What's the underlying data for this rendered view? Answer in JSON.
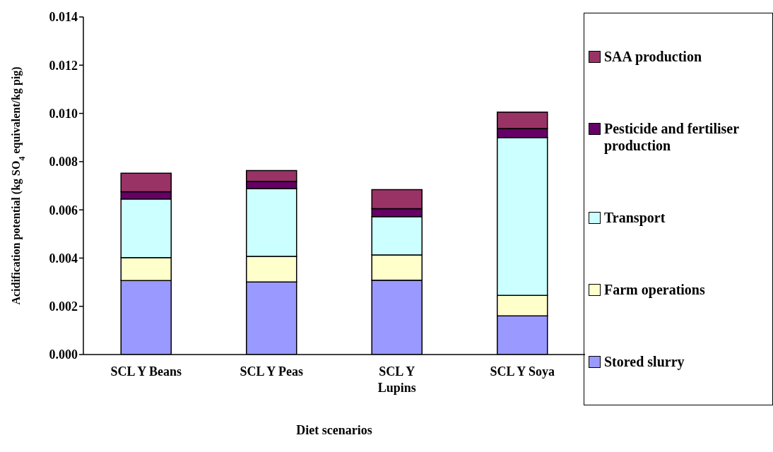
{
  "chart_data": {
    "type": "bar",
    "stacked": true,
    "xlabel": "Diet scenarios",
    "ylabel": "Acidification potential (kg SO$_{4}$ equivalent/kg pig)",
    "categories": [
      "SCL Y Beans",
      "SCL Y Peas",
      "SCL Y Lupins",
      "SCL Y Soya"
    ],
    "series": [
      {
        "name": "Stored slurry",
        "color": "#9999ff",
        "values": [
          0.00307,
          0.00301,
          0.00308,
          0.0016
        ]
      },
      {
        "name": "Farm operations",
        "color": "#ffffcc",
        "values": [
          0.00095,
          0.00106,
          0.00105,
          0.00085
        ]
      },
      {
        "name": "Transport",
        "color": "#ccffff",
        "values": [
          0.00243,
          0.00281,
          0.00159,
          0.00655
        ]
      },
      {
        "name": "Pesticide and fertiliser production",
        "color": "#660066",
        "values": [
          0.0003,
          0.0003,
          0.00033,
          0.00037
        ]
      },
      {
        "name": "SAA production",
        "color": "#993366",
        "values": [
          0.00077,
          0.00045,
          0.00079,
          0.00068
        ]
      }
    ],
    "ylim": [
      0,
      0.014
    ],
    "yticks": [
      {
        "value": 0,
        "label": "0.000"
      },
      {
        "value": 0.002,
        "label": "0.002"
      },
      {
        "value": 0.004,
        "label": "0.004"
      },
      {
        "value": 0.006,
        "label": "0.006"
      },
      {
        "value": 0.008,
        "label": "0.008"
      },
      {
        "value": 0.01,
        "label": "0.010"
      },
      {
        "value": 0.012,
        "label": "0.012"
      },
      {
        "value": 0.014,
        "label": "0.014"
      }
    ],
    "grid": false,
    "legend": "right"
  }
}
